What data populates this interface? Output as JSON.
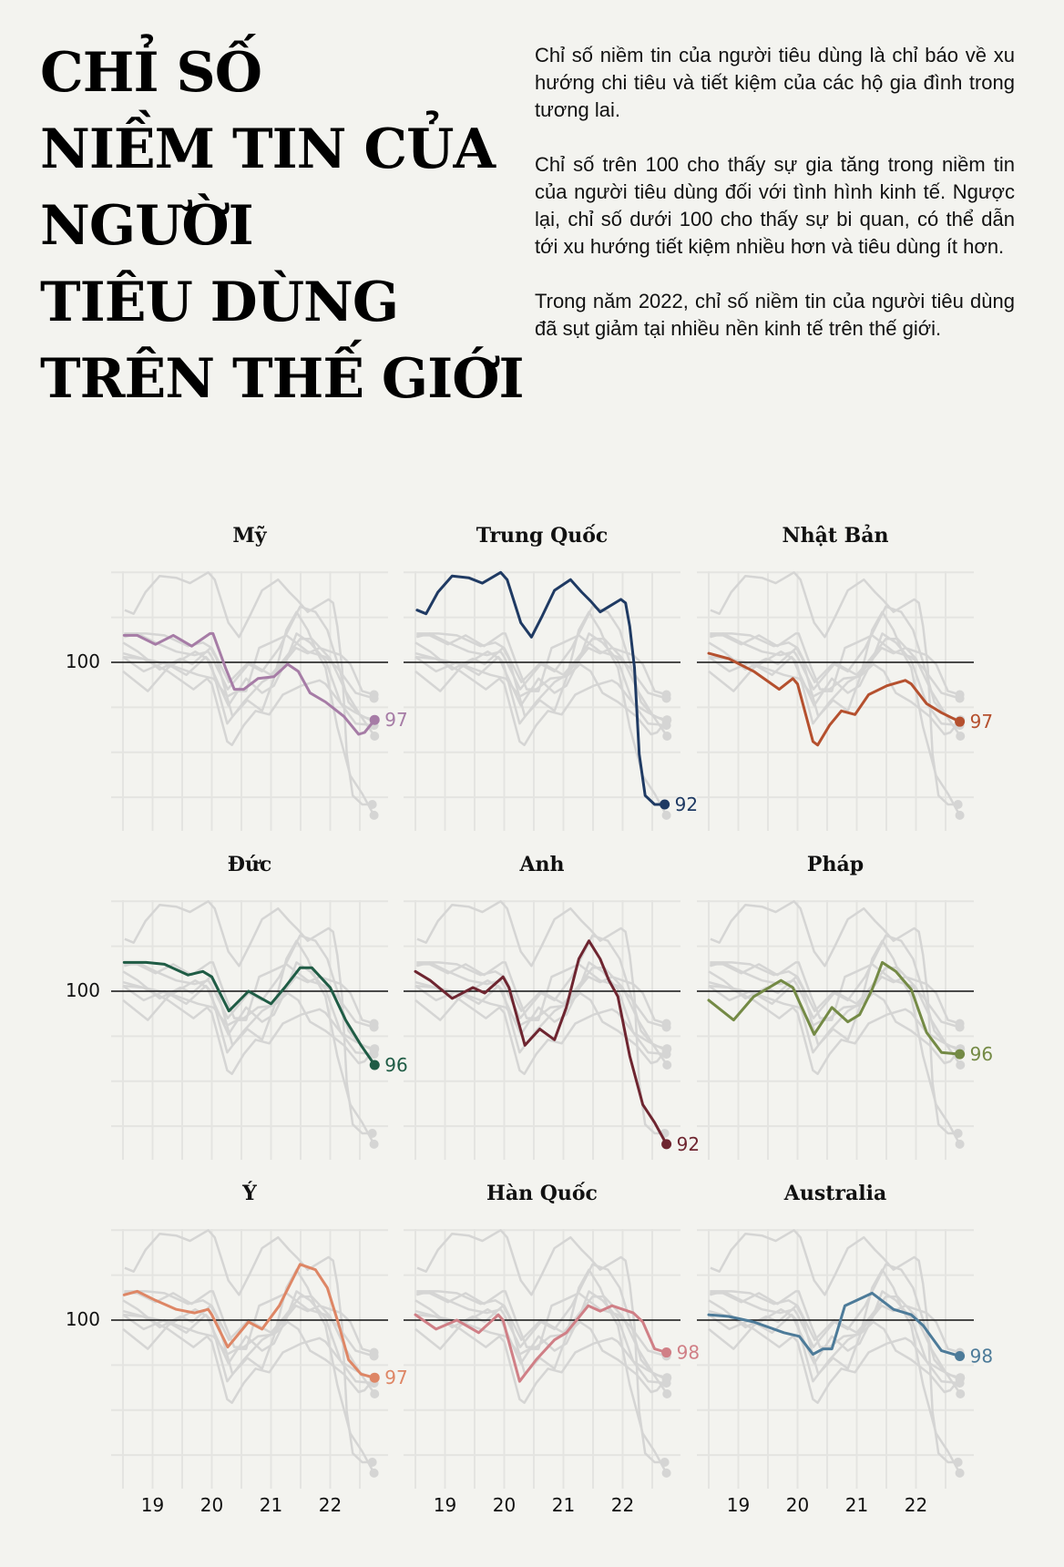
{
  "header": {
    "title_lines": [
      "CHỈ SỐ",
      "NIỀM TIN CỦA",
      "NGƯỜI",
      "TIÊU DÙNG",
      "TRÊN THẾ GIỚI"
    ],
    "intro_paragraphs": [
      "Chỉ số niềm tin của người tiêu dùng là chỉ báo về xu hướng chi tiêu và tiết kiệm của các hộ gia đình trong tương lai.",
      "Chỉ số trên 100 cho thấy sự gia tăng trong niềm tin của người tiêu dùng đối với tình hình kinh tế. Ngược lại, chỉ số dưới 100 cho thấy sự bi quan, có thể dẫn tới xu hướng tiết kiệm nhiều hơn và tiêu dùng ít hơn.",
      "Trong năm 2022, chỉ số niềm tin của người tiêu dùng đã sụt giảm tại nhiều nền kinh tế trên thế giới."
    ]
  },
  "axes": {
    "reference_label": "100",
    "x_tick_labels": [
      "19",
      "20",
      "21",
      "22"
    ]
  },
  "colors": {
    "background": "#f3f3ef",
    "grid": "#e4e4e1",
    "context_line": "#d5d5d4",
    "reference_line": "#111111"
  },
  "chart_data": {
    "type": "line",
    "title": "Chỉ số niềm tin của người tiêu dùng trên thế giới",
    "layout": "small multiples 3x3; each panel highlights one country, others shown in grey",
    "xlabel": "",
    "ylabel": "",
    "x_range": [
      2018.5,
      2022.75
    ],
    "x_ticks": [
      2019,
      2020,
      2021,
      2022
    ],
    "x_tick_labels": [
      "19",
      "20",
      "21",
      "22"
    ],
    "ylim": [
      91.0,
      106.0
    ],
    "y_gridlines": [
      92.5,
      95.0,
      97.5,
      100.0,
      102.5,
      105.0
    ],
    "reference_line": 100,
    "grid": true,
    "series": [
      {
        "name": "Mỹ",
        "color": "#a67ca6",
        "end_label": "97",
        "x": [
          2018.52,
          2018.74,
          2019.05,
          2019.35,
          2019.66,
          2019.97,
          2020.02,
          2020.23,
          2020.38,
          2020.54,
          2020.78,
          2021.05,
          2021.28,
          2021.46,
          2021.66,
          2021.92,
          2022.23,
          2022.48,
          2022.58,
          2022.75
        ],
        "values": [
          101.5,
          101.5,
          101.0,
          101.5,
          100.9,
          101.6,
          101.6,
          99.7,
          98.5,
          98.5,
          99.1,
          99.2,
          99.9,
          99.5,
          98.3,
          97.8,
          97.0,
          96.0,
          96.1,
          96.8
        ]
      },
      {
        "name": "Trung Quốc",
        "color": "#1f3a63",
        "end_label": "92",
        "x": [
          2018.53,
          2018.68,
          2018.88,
          2019.12,
          2019.4,
          2019.63,
          2019.94,
          2020.05,
          2020.28,
          2020.46,
          2020.63,
          2020.85,
          2021.12,
          2021.31,
          2021.46,
          2021.62,
          2021.77,
          2021.97,
          2022.05,
          2022.12,
          2022.2,
          2022.28,
          2022.38,
          2022.54,
          2022.71
        ],
        "values": [
          102.9,
          102.7,
          103.9,
          104.8,
          104.7,
          104.4,
          105.0,
          104.6,
          102.2,
          101.4,
          102.5,
          104.0,
          104.6,
          103.9,
          103.4,
          102.8,
          103.1,
          103.5,
          103.3,
          102.0,
          99.7,
          94.9,
          92.6,
          92.1,
          92.1
        ]
      },
      {
        "name": "Nhật Bản",
        "color": "#b5502e",
        "end_label": "97",
        "x": [
          2018.5,
          2018.84,
          2019.26,
          2019.69,
          2019.92,
          2020.0,
          2020.26,
          2020.34,
          2020.54,
          2020.74,
          2020.97,
          2021.2,
          2021.51,
          2021.82,
          2021.92,
          2022.18,
          2022.43,
          2022.74
        ],
        "values": [
          100.5,
          100.2,
          99.5,
          98.5,
          99.1,
          98.8,
          95.6,
          95.4,
          96.5,
          97.3,
          97.1,
          98.2,
          98.7,
          99.0,
          98.8,
          97.7,
          97.2,
          96.7
        ]
      },
      {
        "name": "Đức",
        "color": "#1f5c45",
        "end_label": "96",
        "x": [
          2018.52,
          2018.89,
          2019.2,
          2019.6,
          2019.85,
          2020.0,
          2020.29,
          2020.62,
          2021.0,
          2021.23,
          2021.49,
          2021.69,
          2022.0,
          2022.26,
          2022.52,
          2022.75
        ],
        "values": [
          101.6,
          101.6,
          101.5,
          100.9,
          101.1,
          100.8,
          98.9,
          100.0,
          99.3,
          100.2,
          101.3,
          101.3,
          100.2,
          98.4,
          97.0,
          95.9
        ]
      },
      {
        "name": "Anh",
        "color": "#6e2530",
        "end_label": "92",
        "x": [
          2018.5,
          2018.75,
          2019.12,
          2019.47,
          2019.67,
          2019.98,
          2020.08,
          2020.35,
          2020.6,
          2020.85,
          2021.05,
          2021.26,
          2021.43,
          2021.62,
          2021.77,
          2021.92,
          2022.12,
          2022.34,
          2022.54,
          2022.74
        ],
        "values": [
          101.1,
          100.6,
          99.6,
          100.2,
          99.9,
          100.8,
          100.2,
          97.0,
          97.9,
          97.3,
          99.1,
          101.8,
          102.8,
          101.8,
          100.6,
          99.7,
          96.4,
          93.7,
          92.7,
          91.5
        ]
      },
      {
        "name": "Pháp",
        "color": "#748a45",
        "end_label": "96",
        "x": [
          2018.5,
          2018.92,
          2019.26,
          2019.72,
          2019.92,
          2020.28,
          2020.58,
          2020.85,
          2021.05,
          2021.26,
          2021.43,
          2021.66,
          2021.92,
          2022.18,
          2022.43,
          2022.74
        ],
        "values": [
          99.5,
          98.4,
          99.7,
          100.6,
          100.2,
          97.6,
          99.1,
          98.3,
          98.7,
          100.1,
          101.6,
          101.1,
          100.1,
          97.7,
          96.6,
          96.5
        ]
      },
      {
        "name": "Ý",
        "color": "#de8665",
        "end_label": "97",
        "x": [
          2018.52,
          2018.74,
          2019.05,
          2019.4,
          2019.71,
          2019.94,
          2020.0,
          2020.27,
          2020.62,
          2020.85,
          2021.14,
          2021.49,
          2021.75,
          2021.95,
          2022.14,
          2022.31,
          2022.52,
          2022.75
        ],
        "values": [
          101.4,
          101.6,
          101.1,
          100.6,
          100.4,
          100.6,
          100.3,
          98.5,
          99.9,
          99.5,
          100.8,
          103.1,
          102.8,
          101.8,
          99.8,
          97.8,
          97.0,
          96.8
        ]
      },
      {
        "name": "Hàn Quốc",
        "color": "#d07f86",
        "end_label": "98",
        "x": [
          2018.5,
          2018.85,
          2019.2,
          2019.57,
          2019.9,
          2019.98,
          2020.26,
          2020.54,
          2020.85,
          2021.05,
          2021.42,
          2021.62,
          2021.82,
          2022.18,
          2022.34,
          2022.54,
          2022.74
        ],
        "values": [
          100.3,
          99.5,
          100.0,
          99.3,
          100.3,
          100.0,
          96.6,
          97.8,
          98.9,
          99.3,
          100.8,
          100.5,
          100.8,
          100.4,
          99.9,
          98.4,
          98.2
        ]
      },
      {
        "name": "Australia",
        "color": "#4d7b99",
        "end_label": "98",
        "x": [
          2018.5,
          2018.84,
          2019.26,
          2019.77,
          2020.03,
          2020.26,
          2020.43,
          2020.58,
          2020.8,
          2021.0,
          2021.26,
          2021.62,
          2021.92,
          2022.12,
          2022.43,
          2022.74
        ],
        "values": [
          100.3,
          100.2,
          99.9,
          99.3,
          99.1,
          98.1,
          98.4,
          98.4,
          100.8,
          101.1,
          101.5,
          100.6,
          100.3,
          99.7,
          98.3,
          98.0
        ]
      }
    ]
  }
}
